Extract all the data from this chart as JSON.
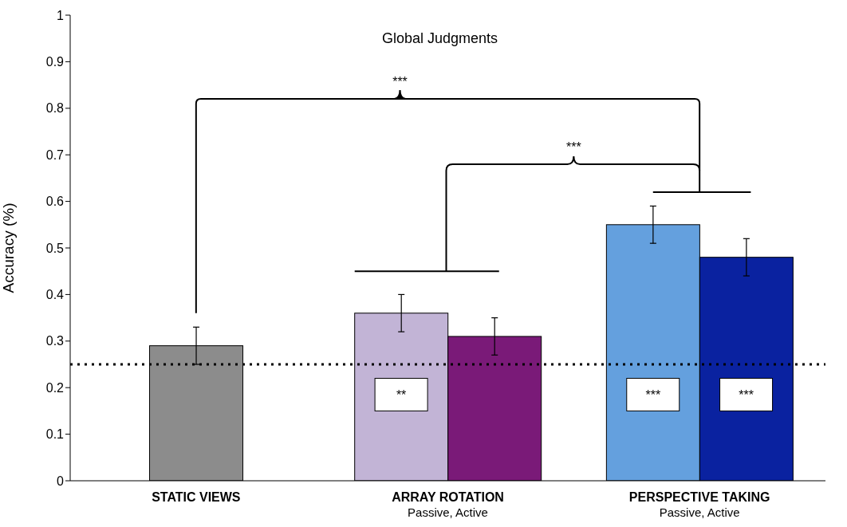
{
  "chart_data": {
    "type": "bar",
    "title": "Global Judgments",
    "ylabel": "Accuracy (%)",
    "categories": [
      "STATIC VIEWS",
      "ARRAY ROTATION\nPassive, Active",
      "PERSPECTIVE TAKING\nPassive, Active"
    ],
    "series": [
      {
        "colors": [
          "#8c8c8c",
          "#c2b4d6",
          "#64a0de"
        ],
        "values": [
          0.29,
          0.36,
          0.55
        ],
        "errors": [
          0.04,
          0.04,
          0.04
        ]
      },
      {
        "colors": [
          "#7a1a78",
          "#7a1a78",
          "#0a22a0"
        ],
        "values": [
          null,
          0.31,
          0.48
        ],
        "errors": [
          null,
          0.04,
          0.04
        ]
      }
    ],
    "ylim": [
      0,
      1
    ],
    "yticks": [
      0,
      0.1,
      0.2,
      0.3,
      0.4,
      0.5,
      0.6,
      0.7,
      0.8,
      0.9,
      1
    ],
    "grid": false,
    "legend": false,
    "ref_lines": [
      {
        "axis": "y",
        "value": 0.25,
        "color": "#000000",
        "line_style": "dotted"
      }
    ],
    "annotations": [
      "***",
      "***",
      "**",
      "***",
      "***"
    ]
  }
}
